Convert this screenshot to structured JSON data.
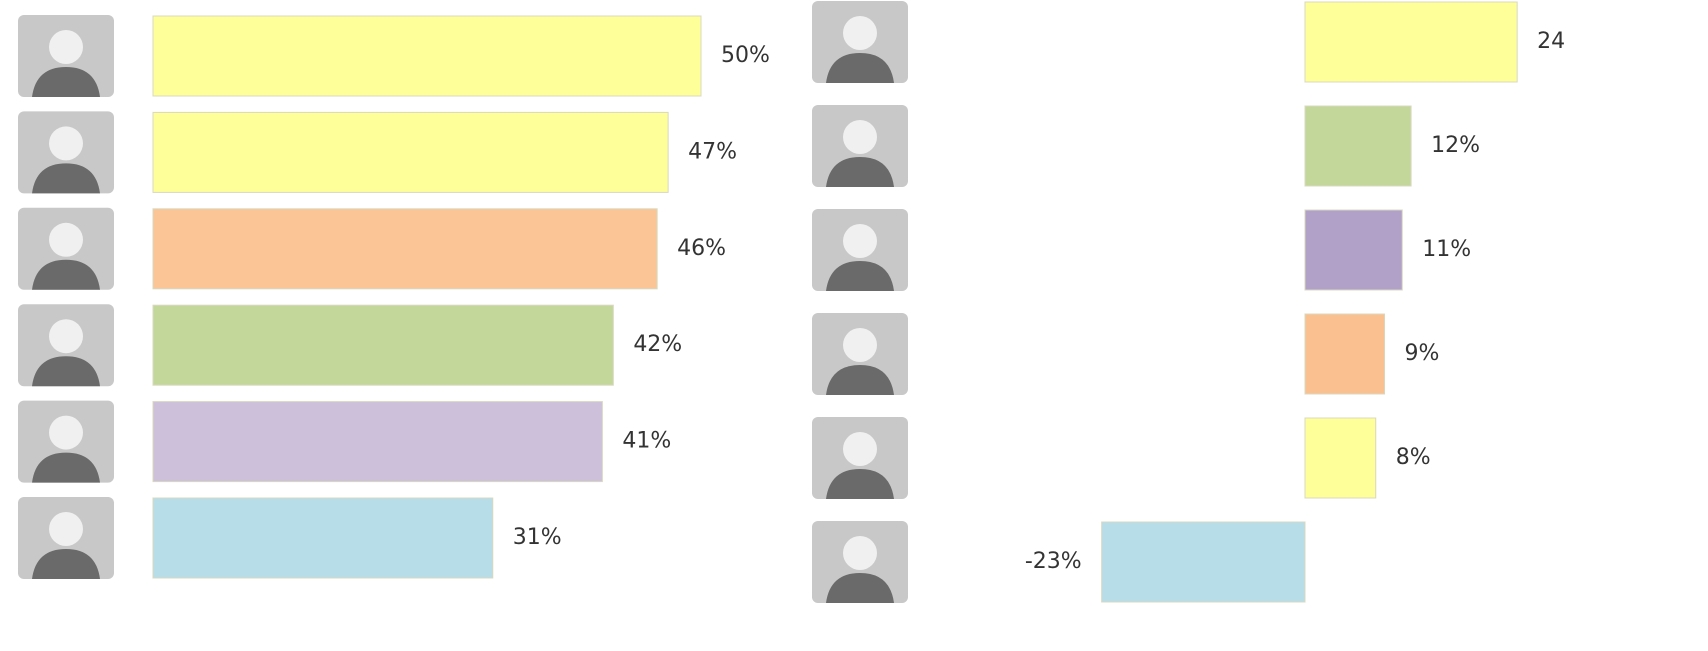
{
  "chart_data": [
    {
      "type": "bar",
      "values": [
        50,
        47,
        46,
        42,
        41,
        31
      ],
      "value_labels": [
        "50%",
        "47%",
        "46%",
        "42%",
        "41%",
        "31%"
      ],
      "colors": [
        "#ffff99",
        "#ffff99",
        "#fcc596",
        "#c4d79b",
        "#ccc0da",
        "#b7dde8"
      ],
      "xlim": [
        0,
        50
      ]
    },
    {
      "type": "bar",
      "values": [
        24,
        12,
        11,
        9,
        8,
        -23
      ],
      "value_labels": [
        "24",
        "12%",
        "11%",
        "9%",
        "8%",
        "-23%"
      ],
      "colors": [
        "#ffff99",
        "#c4d79b",
        "#b1a0c7",
        "#fac090",
        "#ffff99",
        "#b7dde8"
      ],
      "xlim": [
        -25,
        25
      ]
    }
  ]
}
